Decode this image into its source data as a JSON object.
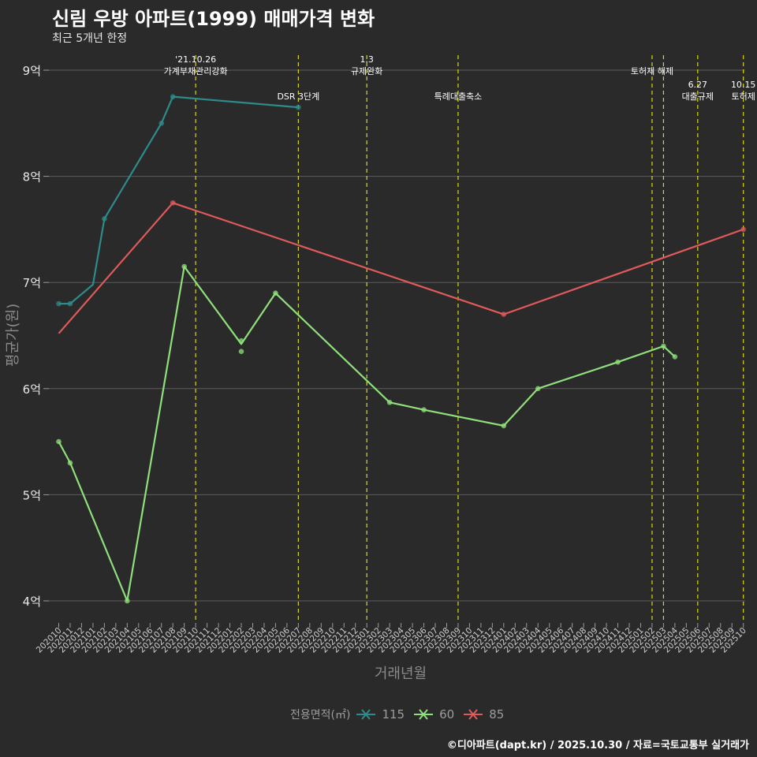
{
  "header": {
    "title": "신림 우방 아파트(1999) 매매가격 변화",
    "subtitle": "최근 5개년 한정"
  },
  "caption": "©디아파트(dapt.kr) / 2025.10.30 / 자료=국토교통부 실거래가",
  "legend": {
    "title": "전용면적(㎡)",
    "items": [
      {
        "label": "115",
        "color": "#2e8b8b"
      },
      {
        "label": "60",
        "color": "#8fe07a"
      },
      {
        "label": "85",
        "color": "#e05a5a"
      }
    ]
  },
  "chart_data": {
    "type": "line",
    "title": "신림 우방 아파트(1999) 매매가격 변화",
    "subtitle": "최근 5개년 한정",
    "xlabel": "거래년월",
    "ylabel": "평균가(원)",
    "ylim": [
      3.8,
      9.1
    ],
    "grid": true,
    "yticks": [
      {
        "value": 4,
        "label": "4억"
      },
      {
        "value": 5,
        "label": "5억"
      },
      {
        "value": 6,
        "label": "6억"
      },
      {
        "value": 7,
        "label": "7억"
      },
      {
        "value": 8,
        "label": "8억"
      },
      {
        "value": 9,
        "label": "9억"
      }
    ],
    "x_labels": [
      "202010",
      "202011",
      "202012",
      "202101",
      "202102",
      "202103",
      "202104",
      "202105",
      "202106",
      "202107",
      "202108",
      "202109",
      "202110",
      "202111",
      "202112",
      "202201",
      "202202",
      "202203",
      "202204",
      "202205",
      "202206",
      "202207",
      "202208",
      "202209",
      "202210",
      "202211",
      "202212",
      "202301",
      "202302",
      "202303",
      "202304",
      "202305",
      "202306",
      "202307",
      "202308",
      "202309",
      "202310",
      "202311",
      "202312",
      "202401",
      "202402",
      "202403",
      "202404",
      "202405",
      "202406",
      "202407",
      "202408",
      "202409",
      "202410",
      "202411",
      "202412",
      "202501",
      "202502",
      "202503",
      "202504",
      "202505",
      "202506",
      "202507",
      "202508",
      "202509",
      "202510"
    ],
    "series": [
      {
        "name": "115",
        "color": "#2e8b8b",
        "x": [
          0,
          1,
          3,
          4,
          9,
          10,
          21
        ],
        "values": [
          6.8,
          6.8,
          6.98,
          7.6,
          8.5,
          8.75,
          8.65
        ],
        "points": [
          [
            0,
            6.8
          ],
          [
            1,
            6.8
          ],
          [
            4,
            7.6
          ],
          [
            9,
            8.5
          ],
          [
            10,
            8.75
          ],
          [
            21,
            8.65
          ]
        ]
      },
      {
        "name": "60",
        "color": "#8fe07a",
        "x": [
          0,
          1,
          6,
          11,
          16,
          19,
          29,
          32,
          39,
          42,
          49,
          53,
          54
        ],
        "values": [
          5.5,
          5.3,
          4.0,
          7.15,
          6.42,
          6.9,
          5.87,
          5.8,
          5.65,
          6.0,
          6.25,
          6.4,
          6.3
        ],
        "points": [
          [
            0,
            5.5
          ],
          [
            1,
            5.3
          ],
          [
            6,
            4.0
          ],
          [
            11,
            7.15
          ],
          [
            16,
            6.45
          ],
          [
            16,
            6.35
          ],
          [
            19,
            6.9
          ],
          [
            29,
            5.87
          ],
          [
            32,
            5.8
          ],
          [
            39,
            5.65
          ],
          [
            42,
            6.0
          ],
          [
            49,
            6.25
          ],
          [
            53,
            6.4
          ],
          [
            54,
            6.3
          ]
        ]
      },
      {
        "name": "85",
        "color": "#e05a5a",
        "x": [
          0,
          10,
          39,
          60
        ],
        "values": [
          6.52,
          7.75,
          6.7,
          7.5
        ],
        "points": [
          [
            10,
            7.75
          ],
          [
            39,
            6.7
          ],
          [
            60,
            7.5
          ]
        ]
      }
    ],
    "events": [
      {
        "x": 12,
        "lines": [
          "'21.10.26",
          "가계부채관리강화"
        ],
        "level": 1
      },
      {
        "x": 21,
        "lines": [
          "DSR 3단계"
        ],
        "level": 2
      },
      {
        "x": 27,
        "lines": [
          "1.3",
          "규제완화"
        ],
        "level": 1
      },
      {
        "x": 35,
        "lines": [
          "특례대출축소"
        ],
        "level": 2
      },
      {
        "x": 52,
        "lines": [
          "토허제 해제"
        ],
        "level": 1
      },
      {
        "x": 53,
        "lines": [],
        "level": 1
      },
      {
        "x": 56,
        "lines": [
          "6.27",
          "대출규제"
        ],
        "level": 2
      },
      {
        "x": 60,
        "lines": [
          "10.15",
          "토허제"
        ],
        "level": 2
      }
    ]
  }
}
